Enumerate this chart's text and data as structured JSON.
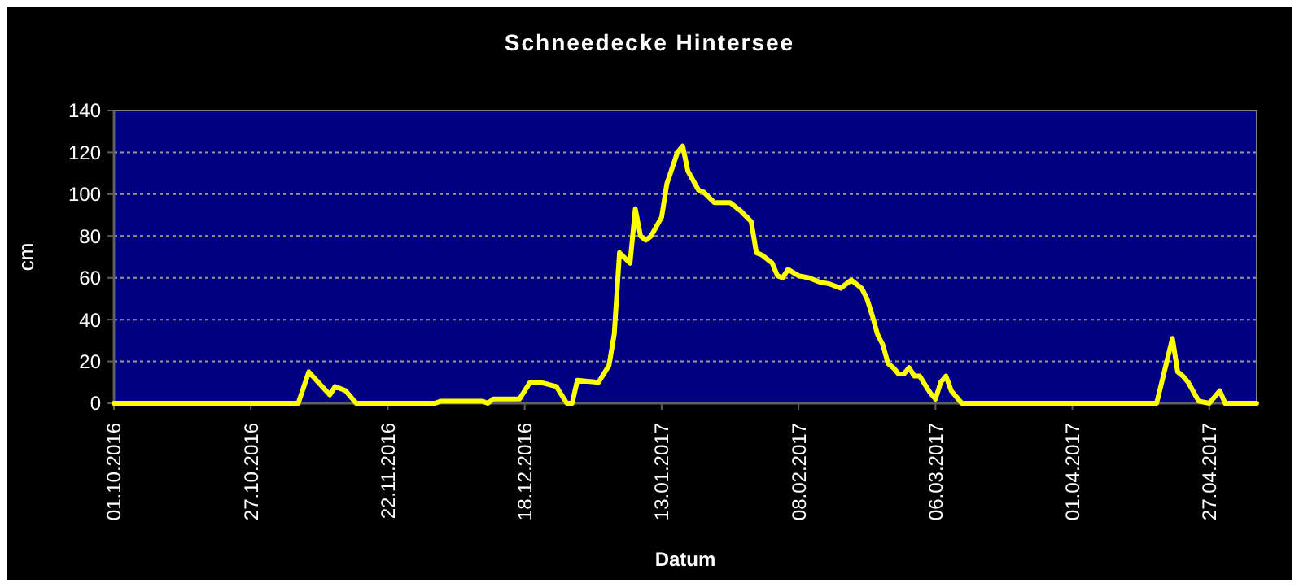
{
  "chart_data": {
    "type": "line",
    "title": "Schneedecke Hintersee",
    "xlabel": "Datum",
    "ylabel": "cm",
    "x": [
      "2016-10-01",
      "2016-11-05",
      "2016-11-07",
      "2016-11-11",
      "2016-11-12",
      "2016-11-14",
      "2016-11-16",
      "2016-12-01",
      "2016-12-02",
      "2016-12-10",
      "2016-12-11",
      "2016-12-12",
      "2016-12-17",
      "2016-12-19",
      "2016-12-21",
      "2016-12-24",
      "2016-12-26",
      "2016-12-27",
      "2016-12-28",
      "2017-01-01",
      "2017-01-03",
      "2017-01-04",
      "2017-01-05",
      "2017-01-07",
      "2017-01-08",
      "2017-01-09",
      "2017-01-10",
      "2017-01-11",
      "2017-01-13",
      "2017-01-14",
      "2017-01-16",
      "2017-01-17",
      "2017-01-18",
      "2017-01-20",
      "2017-01-21",
      "2017-01-23",
      "2017-01-26",
      "2017-01-28",
      "2017-01-30",
      "2017-01-31",
      "2017-02-01",
      "2017-02-03",
      "2017-02-04",
      "2017-02-05",
      "2017-02-06",
      "2017-02-08",
      "2017-02-10",
      "2017-02-12",
      "2017-02-14",
      "2017-02-16",
      "2017-02-18",
      "2017-02-20",
      "2017-02-21",
      "2017-02-22",
      "2017-02-23",
      "2017-02-24",
      "2017-02-25",
      "2017-02-26",
      "2017-02-27",
      "2017-02-28",
      "2017-03-01",
      "2017-03-02",
      "2017-03-03",
      "2017-03-05",
      "2017-03-06",
      "2017-03-07",
      "2017-03-08",
      "2017-03-09",
      "2017-03-11",
      "2017-04-17",
      "2017-04-20",
      "2017-04-21",
      "2017-04-22",
      "2017-04-23",
      "2017-04-25",
      "2017-04-27",
      "2017-04-29",
      "2017-04-30",
      "2017-05-06"
    ],
    "series": [
      {
        "color": "#ffff00",
        "values": [
          0,
          0,
          15,
          4,
          8,
          6,
          0,
          0,
          1,
          1,
          0,
          2,
          2,
          10,
          10,
          8,
          0,
          0,
          11,
          10,
          18,
          33,
          72,
          67,
          93,
          80,
          78,
          80,
          89,
          105,
          120,
          123,
          111,
          102,
          101,
          96,
          96,
          92,
          87,
          72,
          71,
          67,
          61,
          60,
          64,
          61,
          60,
          58,
          57,
          55,
          59,
          55,
          50,
          42,
          33,
          28,
          19,
          17,
          14,
          14,
          17,
          13,
          13,
          5,
          2,
          10,
          13,
          6,
          0,
          0,
          31,
          15,
          13,
          10,
          1,
          0,
          6,
          0,
          0
        ]
      }
    ],
    "xlim": [
      "2016-10-01",
      "2017-05-06"
    ],
    "xticks": [
      {
        "value": "2016-10-01",
        "label": "01.10.2016"
      },
      {
        "value": "2016-10-27",
        "label": "27.10.2016"
      },
      {
        "value": "2016-11-22",
        "label": "22.11.2016"
      },
      {
        "value": "2016-12-18",
        "label": "18.12.2016"
      },
      {
        "value": "2017-01-13",
        "label": "13.01.2017"
      },
      {
        "value": "2017-02-08",
        "label": "08.02.2017"
      },
      {
        "value": "2017-03-06",
        "label": "06.03.2017"
      },
      {
        "value": "2017-04-01",
        "label": "01.04.2017"
      },
      {
        "value": "2017-04-27",
        "label": "27.04.2017"
      }
    ],
    "ylim": [
      0,
      140
    ],
    "yticks": [
      0,
      20,
      40,
      60,
      80,
      100,
      120,
      140
    ],
    "grid": "y"
  }
}
